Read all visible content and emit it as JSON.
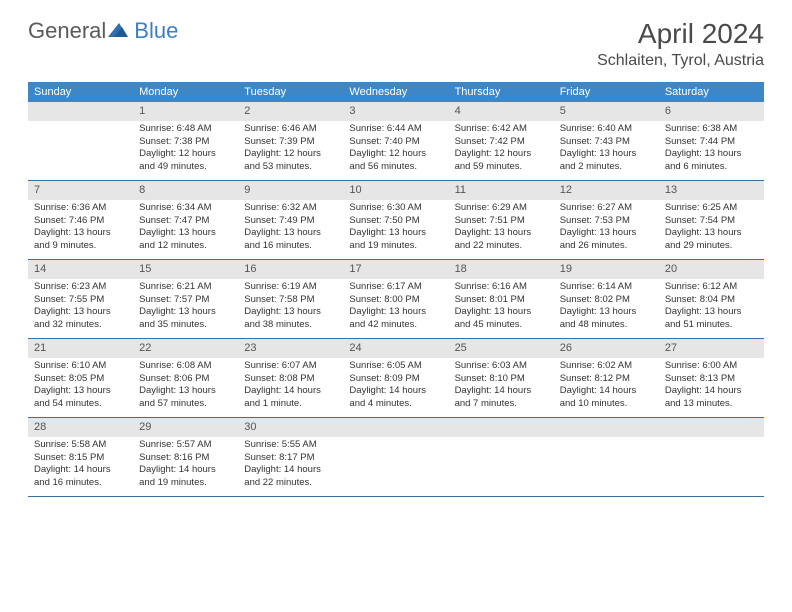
{
  "logo": {
    "general": "General",
    "blue": "Blue"
  },
  "title": "April 2024",
  "location": "Schlaiten, Tyrol, Austria",
  "colors": {
    "header_bg": "#3b87c8",
    "header_text": "#ffffff",
    "daynum_bg": "#e6e6e6",
    "week_border": "#3b6fa0",
    "body_text": "#333333",
    "title_text": "#4a4a4a",
    "logo_gray": "#5a5a5a",
    "logo_blue": "#3b7fc4"
  },
  "weekdays": [
    "Sunday",
    "Monday",
    "Tuesday",
    "Wednesday",
    "Thursday",
    "Friday",
    "Saturday"
  ],
  "first_weekday_index": 1,
  "days": [
    {
      "n": 1,
      "sunrise": "6:48 AM",
      "sunset": "7:38 PM",
      "daylight": "12 hours and 49 minutes."
    },
    {
      "n": 2,
      "sunrise": "6:46 AM",
      "sunset": "7:39 PM",
      "daylight": "12 hours and 53 minutes."
    },
    {
      "n": 3,
      "sunrise": "6:44 AM",
      "sunset": "7:40 PM",
      "daylight": "12 hours and 56 minutes."
    },
    {
      "n": 4,
      "sunrise": "6:42 AM",
      "sunset": "7:42 PM",
      "daylight": "12 hours and 59 minutes."
    },
    {
      "n": 5,
      "sunrise": "6:40 AM",
      "sunset": "7:43 PM",
      "daylight": "13 hours and 2 minutes."
    },
    {
      "n": 6,
      "sunrise": "6:38 AM",
      "sunset": "7:44 PM",
      "daylight": "13 hours and 6 minutes."
    },
    {
      "n": 7,
      "sunrise": "6:36 AM",
      "sunset": "7:46 PM",
      "daylight": "13 hours and 9 minutes."
    },
    {
      "n": 8,
      "sunrise": "6:34 AM",
      "sunset": "7:47 PM",
      "daylight": "13 hours and 12 minutes."
    },
    {
      "n": 9,
      "sunrise": "6:32 AM",
      "sunset": "7:49 PM",
      "daylight": "13 hours and 16 minutes."
    },
    {
      "n": 10,
      "sunrise": "6:30 AM",
      "sunset": "7:50 PM",
      "daylight": "13 hours and 19 minutes."
    },
    {
      "n": 11,
      "sunrise": "6:29 AM",
      "sunset": "7:51 PM",
      "daylight": "13 hours and 22 minutes."
    },
    {
      "n": 12,
      "sunrise": "6:27 AM",
      "sunset": "7:53 PM",
      "daylight": "13 hours and 26 minutes."
    },
    {
      "n": 13,
      "sunrise": "6:25 AM",
      "sunset": "7:54 PM",
      "daylight": "13 hours and 29 minutes."
    },
    {
      "n": 14,
      "sunrise": "6:23 AM",
      "sunset": "7:55 PM",
      "daylight": "13 hours and 32 minutes."
    },
    {
      "n": 15,
      "sunrise": "6:21 AM",
      "sunset": "7:57 PM",
      "daylight": "13 hours and 35 minutes."
    },
    {
      "n": 16,
      "sunrise": "6:19 AM",
      "sunset": "7:58 PM",
      "daylight": "13 hours and 38 minutes."
    },
    {
      "n": 17,
      "sunrise": "6:17 AM",
      "sunset": "8:00 PM",
      "daylight": "13 hours and 42 minutes."
    },
    {
      "n": 18,
      "sunrise": "6:16 AM",
      "sunset": "8:01 PM",
      "daylight": "13 hours and 45 minutes."
    },
    {
      "n": 19,
      "sunrise": "6:14 AM",
      "sunset": "8:02 PM",
      "daylight": "13 hours and 48 minutes."
    },
    {
      "n": 20,
      "sunrise": "6:12 AM",
      "sunset": "8:04 PM",
      "daylight": "13 hours and 51 minutes."
    },
    {
      "n": 21,
      "sunrise": "6:10 AM",
      "sunset": "8:05 PM",
      "daylight": "13 hours and 54 minutes."
    },
    {
      "n": 22,
      "sunrise": "6:08 AM",
      "sunset": "8:06 PM",
      "daylight": "13 hours and 57 minutes."
    },
    {
      "n": 23,
      "sunrise": "6:07 AM",
      "sunset": "8:08 PM",
      "daylight": "14 hours and 1 minute."
    },
    {
      "n": 24,
      "sunrise": "6:05 AM",
      "sunset": "8:09 PM",
      "daylight": "14 hours and 4 minutes."
    },
    {
      "n": 25,
      "sunrise": "6:03 AM",
      "sunset": "8:10 PM",
      "daylight": "14 hours and 7 minutes."
    },
    {
      "n": 26,
      "sunrise": "6:02 AM",
      "sunset": "8:12 PM",
      "daylight": "14 hours and 10 minutes."
    },
    {
      "n": 27,
      "sunrise": "6:00 AM",
      "sunset": "8:13 PM",
      "daylight": "14 hours and 13 minutes."
    },
    {
      "n": 28,
      "sunrise": "5:58 AM",
      "sunset": "8:15 PM",
      "daylight": "14 hours and 16 minutes."
    },
    {
      "n": 29,
      "sunrise": "5:57 AM",
      "sunset": "8:16 PM",
      "daylight": "14 hours and 19 minutes."
    },
    {
      "n": 30,
      "sunrise": "5:55 AM",
      "sunset": "8:17 PM",
      "daylight": "14 hours and 22 minutes."
    }
  ],
  "labels": {
    "sunrise": "Sunrise:",
    "sunset": "Sunset:",
    "daylight": "Daylight:"
  }
}
